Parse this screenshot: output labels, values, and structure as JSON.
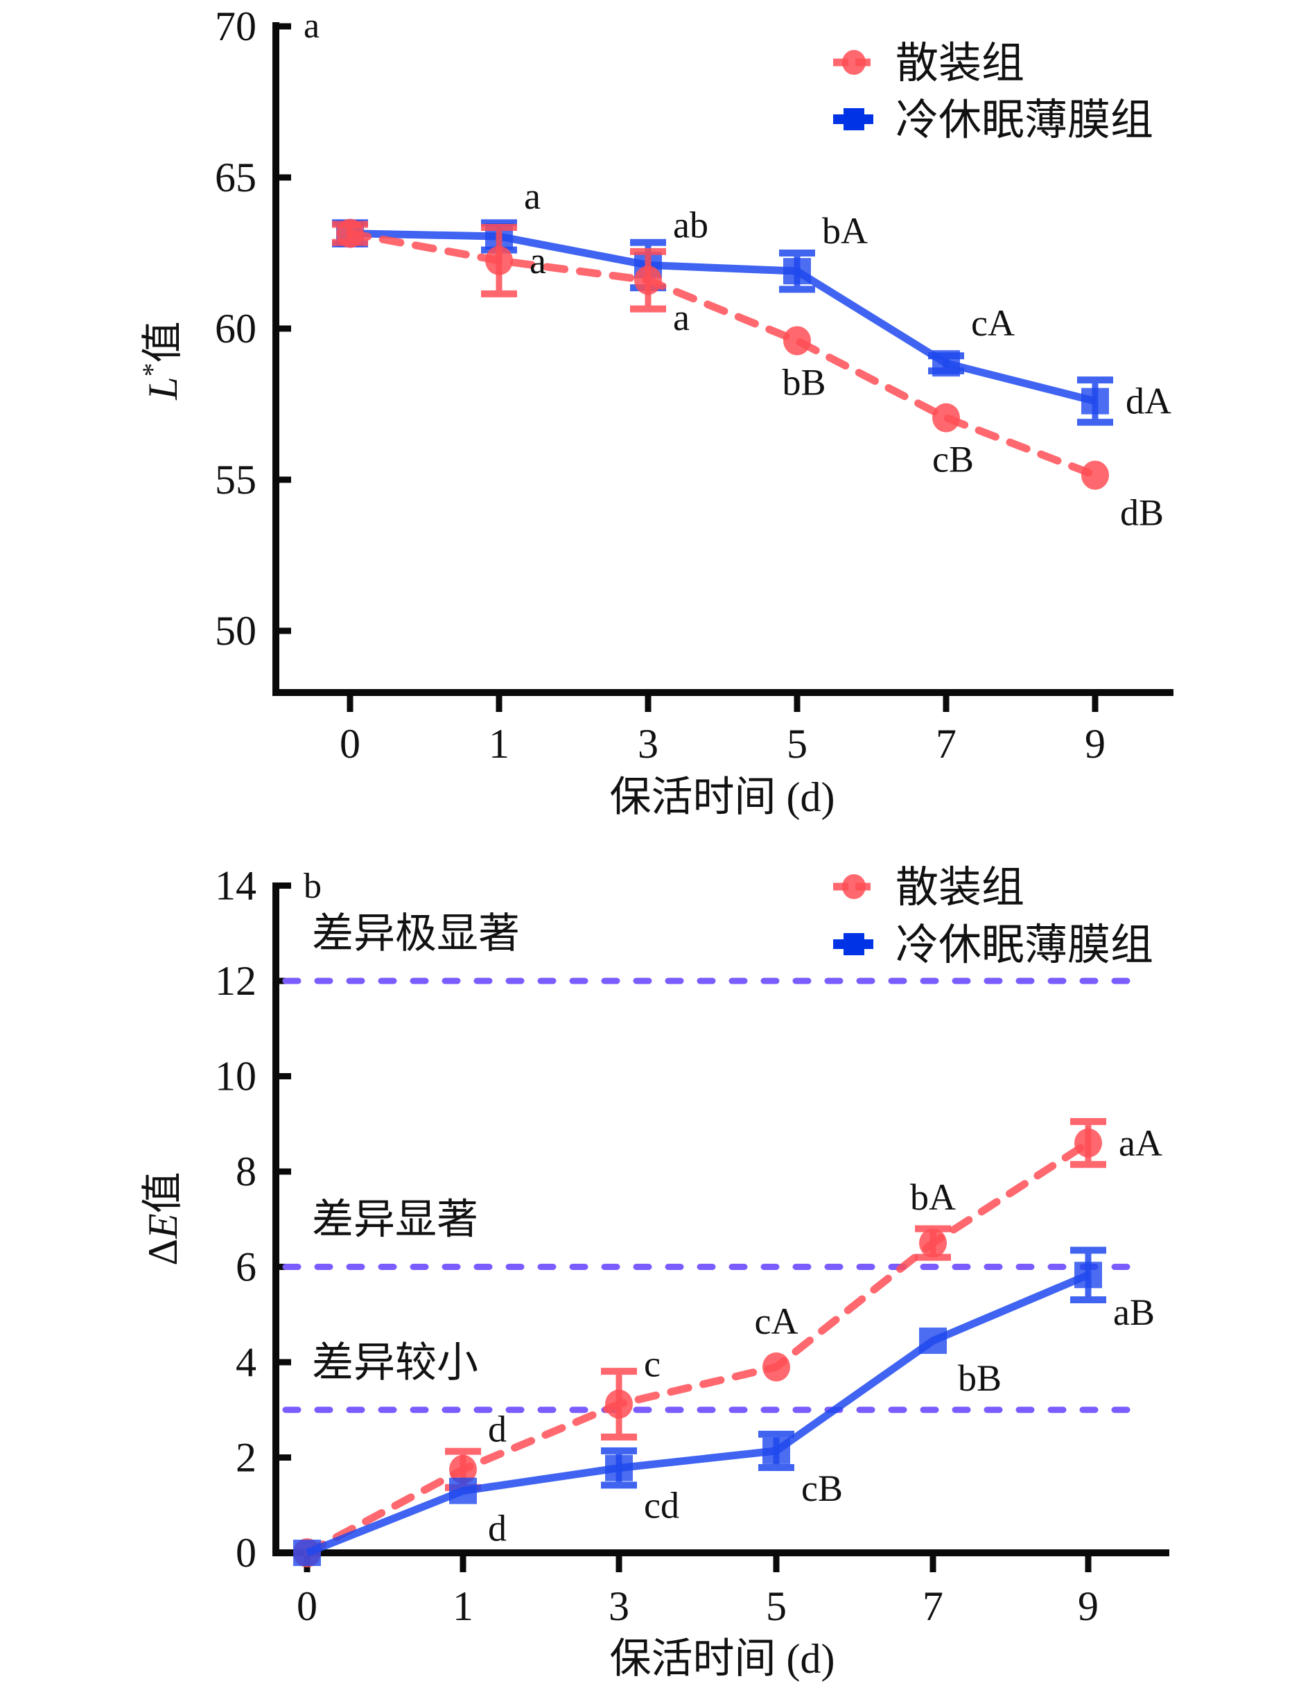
{
  "colors": {
    "bulk": "#ff4d55",
    "film": "#1f49ee",
    "reference": "#7a5cff",
    "axis": "#0a0a0a"
  },
  "legend": {
    "items": [
      {
        "key": "bulk",
        "label": "散装组",
        "marker": "circle",
        "line": "dashed"
      },
      {
        "key": "film",
        "label": "冷休眠薄膜组",
        "marker": "square",
        "line": "solid"
      }
    ]
  },
  "chart_data": [
    {
      "id": "panel-a",
      "type": "line",
      "panel_letter": "a",
      "title": "",
      "xlabel": "保活时间 (d)",
      "ylabel": "L*值",
      "ylabel_parts": {
        "italic": "L",
        "sup": "*",
        "rest": "值"
      },
      "categories": [
        "0",
        "1",
        "3",
        "5",
        "7",
        "9"
      ],
      "x_scale": "categorical",
      "ylim": [
        48,
        70
      ],
      "yticks": [
        50,
        55,
        60,
        65,
        70
      ],
      "grid": false,
      "legend_position": "top-right",
      "series": [
        {
          "key": "film",
          "name": "冷休眠薄膜组",
          "values": [
            63.15,
            63.05,
            62.1,
            61.9,
            58.85,
            57.6
          ],
          "errors": [
            0.35,
            0.45,
            0.75,
            0.6,
            0.25,
            0.7
          ],
          "labels": [
            "",
            "a",
            "ab",
            "bA",
            "cA",
            "dA"
          ],
          "label_pos": [
            "",
            "above-right",
            "above-right",
            "above-right",
            "above-right",
            "right"
          ]
        },
        {
          "key": "bulk",
          "name": "散装组",
          "values": [
            63.15,
            62.25,
            61.6,
            59.6,
            57.05,
            55.15
          ],
          "errors": [
            0.3,
            1.1,
            0.95,
            0.1,
            0.1,
            0.1
          ],
          "labels": [
            "",
            "a",
            "a",
            "bB",
            "cB",
            "dB"
          ],
          "label_pos": [
            "",
            "right",
            "below-right",
            "below",
            "below",
            "below-right"
          ]
        }
      ],
      "reference_lines": []
    },
    {
      "id": "panel-b",
      "type": "line",
      "panel_letter": "b",
      "title": "",
      "xlabel": "保活时间 (d)",
      "ylabel": "ΔE值",
      "ylabel_parts": {
        "prefix": "Δ",
        "italic": "E",
        "rest": "值"
      },
      "categories": [
        "0",
        "1",
        "3",
        "5",
        "7",
        "9"
      ],
      "x_scale": "categorical",
      "ylim": [
        0,
        14
      ],
      "yticks": [
        0,
        2,
        4,
        6,
        8,
        10,
        12,
        14
      ],
      "grid": false,
      "legend_position": "top-right",
      "series": [
        {
          "key": "bulk",
          "name": "散装组",
          "values": [
            0,
            1.75,
            3.12,
            3.9,
            6.5,
            8.6
          ],
          "errors": [
            0.1,
            0.38,
            0.69,
            0.1,
            0.3,
            0.45
          ],
          "labels": [
            "",
            "d",
            "c",
            "cA",
            "bA",
            "aA"
          ],
          "label_pos": [
            "",
            "above-right",
            "above-right",
            "above",
            "above",
            "right"
          ]
        },
        {
          "key": "film",
          "name": "冷休眠薄膜组",
          "values": [
            0,
            1.3,
            1.78,
            2.14,
            4.45,
            5.83
          ],
          "errors": [
            0.1,
            0.1,
            0.36,
            0.35,
            0.1,
            0.52
          ],
          "labels": [
            "",
            "d",
            "cd",
            "cB",
            "bB",
            "aB"
          ],
          "label_pos": [
            "",
            "below-right",
            "below-right",
            "below-right",
            "below-right",
            "below-right"
          ]
        }
      ],
      "reference_lines": [
        {
          "value": 12,
          "label": "差异极显著"
        },
        {
          "value": 6,
          "label": "差异显著"
        },
        {
          "value": 3,
          "label": "差异较小"
        }
      ]
    }
  ]
}
